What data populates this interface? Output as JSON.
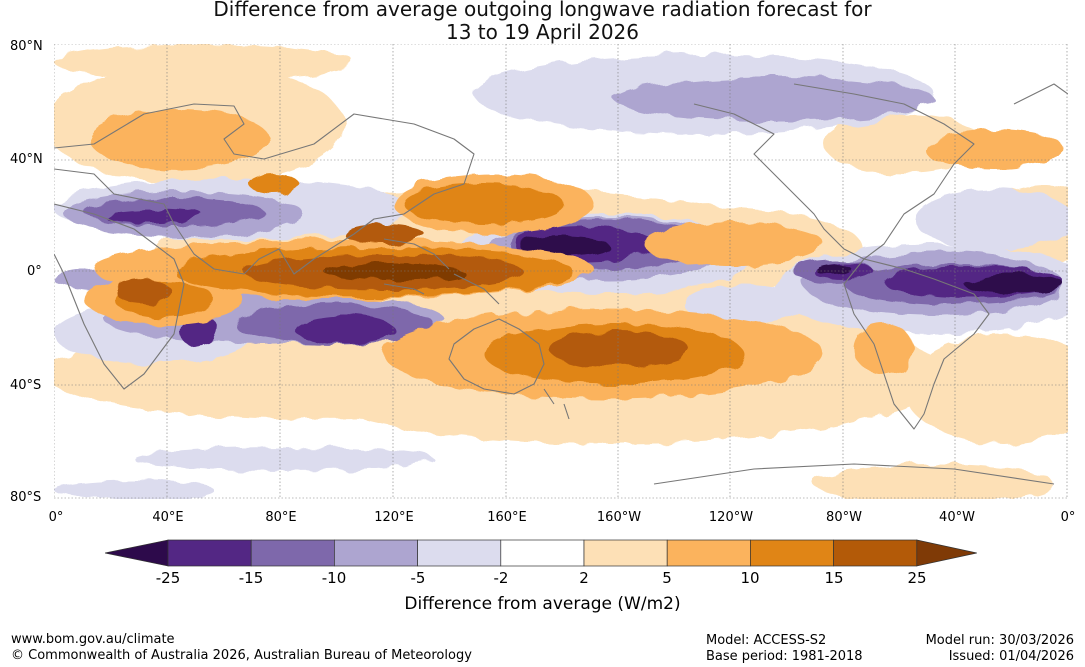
{
  "title": {
    "line1": "Difference from average outgoing longwave radiation forecast for",
    "line2": "13 to 19 April 2026"
  },
  "map": {
    "lat_labels": [
      "80°N",
      "40°N",
      "0°",
      "40°S",
      "80°S"
    ],
    "lon_labels": [
      "0°",
      "40°E",
      "80°E",
      "120°E",
      "160°E",
      "160°W",
      "120°W",
      "80°W",
      "40°W",
      "0°"
    ]
  },
  "colorbar": {
    "title": "Difference from average (W/m2)",
    "ticks": [
      "-25",
      "-15",
      "-10",
      "-5",
      "-2",
      "2",
      "5",
      "10",
      "15",
      "25"
    ],
    "colors": {
      "below_min": "#2d0a4b",
      "n25_15": "#532784",
      "n15_10": "#7e68ab",
      "n10_5": "#ada5d0",
      "n5_2": "#dcdcee",
      "n2_2": "#ffffff",
      "p2_5": "#fde0b6",
      "p5_10": "#fbb35d",
      "p10_15": "#e08516",
      "p15_25": "#b35a08",
      "above_max": "#7f3a06"
    }
  },
  "footer": {
    "website": "www.bom.gov.au/climate",
    "copyright": "© Commonwealth of Australia 2026, Australian Bureau of Meteorology",
    "model": "Model: ACCESS-S2",
    "base_period": "Base period: 1981-2018",
    "model_run": "Model run: 30/03/2026",
    "issued": "Issued: 01/04/2026"
  }
}
